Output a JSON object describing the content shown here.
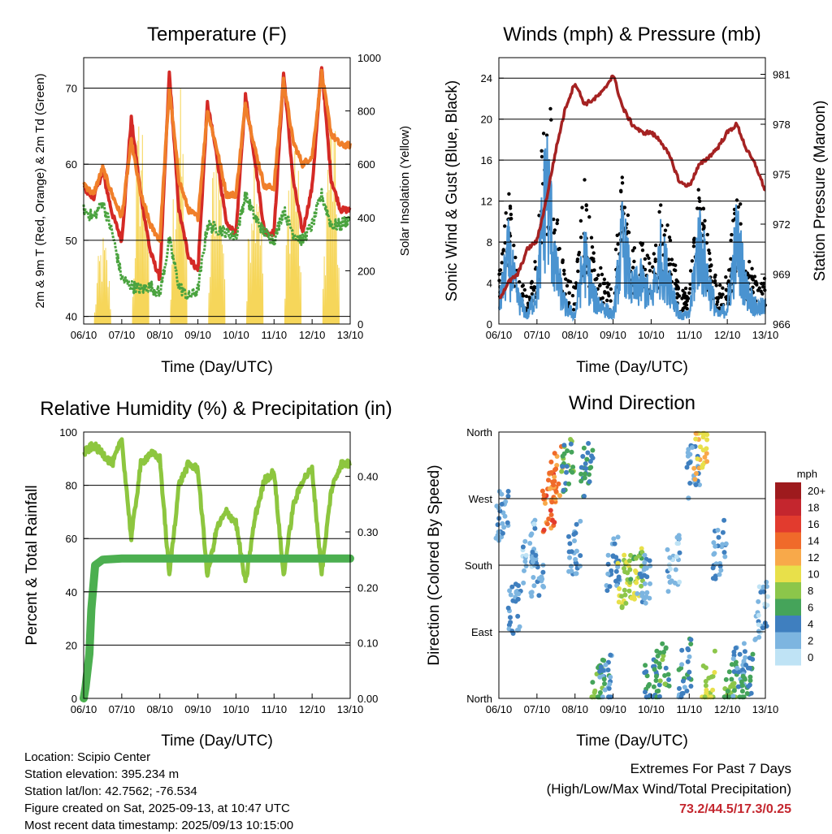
{
  "x_ticks": [
    "06/10",
    "07/10",
    "08/10",
    "09/10",
    "10/10",
    "11/10",
    "12/10",
    "13/10"
  ],
  "x_label": "Time (Day/UTC)",
  "charts": {
    "temperature": {
      "title": "Temperature (F)",
      "ylabel_left": "2m & 9m T (Red, Orange) & 2m Td (Green)",
      "ylabel_right": "Solar Insolation (Yellow)",
      "left_ticks": [
        "40",
        "50",
        "60",
        "70"
      ],
      "right_ticks": [
        "0",
        "200",
        "400",
        "600",
        "800",
        "1000"
      ]
    },
    "winds": {
      "title": "Winds (mph) & Pressure (mb)",
      "ylabel_left": "Sonic Wind & Gust (Blue, Black)",
      "ylabel_right": "Station Pressure (Maroon)",
      "left_ticks": [
        "0",
        "4",
        "8",
        "12",
        "16",
        "20",
        "24"
      ],
      "right_ticks": [
        "966",
        "969",
        "972",
        "975",
        "978",
        "981"
      ]
    },
    "humidity": {
      "title": "Relative Humidity (%) & Precipitation (in)",
      "ylabel_left": "Percent & Total Rainfall",
      "left_ticks": [
        "0",
        "20",
        "40",
        "60",
        "80",
        "100"
      ],
      "right_ticks": [
        "0.00",
        "0.10",
        "0.20",
        "0.30",
        "0.40"
      ]
    },
    "direction": {
      "title": "Wind Direction",
      "ylabel_left": "Direction (Colored By Speed)",
      "left_ticks": [
        "North",
        "East",
        "South",
        "West",
        "North"
      ],
      "legend_title": "mph",
      "legend_labels": [
        "20+",
        "18",
        "16",
        "14",
        "12",
        "10",
        "8",
        "6",
        "4",
        "2",
        "0"
      ],
      "legend_colors": [
        "#9e1a1d",
        "#c4262e",
        "#e23b2e",
        "#f06a2a",
        "#f8a94a",
        "#e8e04a",
        "#8cc64a",
        "#45a45a",
        "#3f7fbf",
        "#7db5e0",
        "#bfe3f5"
      ]
    }
  },
  "chart_data": [
    {
      "type": "line",
      "title": "Temperature (F)",
      "xlabel": "Time (Day/UTC)",
      "ylabel": "2m & 9m T (Red, Orange) & 2m Td (Green)",
      "ylim": [
        39,
        74
      ],
      "y2label": "Solar Insolation (Yellow)",
      "y2lim": [
        0,
        1000
      ],
      "x": [
        6.0,
        6.25,
        6.5,
        6.75,
        7.0,
        7.25,
        7.5,
        7.75,
        8.0,
        8.25,
        8.5,
        8.75,
        9.0,
        9.25,
        9.5,
        9.75,
        10.0,
        10.25,
        10.5,
        10.75,
        11.0,
        11.25,
        11.5,
        11.75,
        12.0,
        12.25,
        12.5,
        12.75,
        13.0
      ],
      "series": [
        {
          "name": "2m T",
          "color": "#d42a26",
          "values": [
            57,
            55.5,
            59,
            53.5,
            50,
            66,
            56,
            48.5,
            45,
            72,
            54,
            48,
            46,
            68,
            61,
            52,
            51,
            69,
            60.5,
            51,
            51,
            72,
            58,
            51,
            57,
            73,
            58,
            54,
            54
          ]
        },
        {
          "name": "9m T",
          "color": "#f07f2a",
          "values": [
            57.5,
            56,
            59.5,
            56,
            53,
            63,
            56,
            52,
            50,
            70,
            58,
            54,
            53,
            67,
            62,
            56,
            56,
            68,
            62,
            57,
            57,
            71,
            63,
            60,
            61,
            72,
            64,
            62.5,
            62.5
          ]
        },
        {
          "name": "2m Td",
          "color": "#4aa33f",
          "values": [
            54,
            53,
            55,
            51,
            45,
            44,
            43.5,
            44,
            43,
            50,
            44,
            42.5,
            43.5,
            52,
            51.5,
            51,
            50.5,
            56,
            53,
            51,
            50,
            54,
            51,
            50,
            52,
            56,
            52,
            52,
            53
          ]
        }
      ],
      "y2_series": [
        {
          "name": "Solar Insolation",
          "color": "#f6d65a",
          "peaks_x": [
            6.5,
            7.5,
            8.5,
            9.5,
            10.5,
            11.5,
            12.5
          ],
          "peaks_y": [
            350,
            880,
            920,
            830,
            860,
            850,
            880
          ]
        }
      ]
    },
    {
      "type": "scatter",
      "title": "Winds (mph) & Pressure (mb)",
      "xlabel": "Time (Day/UTC)",
      "ylabel": "Sonic Wind & Gust (Blue, Black)",
      "ylim": [
        0,
        26
      ],
      "y2label": "Station Pressure (Maroon)",
      "y2lim": [
        966,
        982
      ],
      "x": [
        6.0,
        6.25,
        6.5,
        6.75,
        7.0,
        7.25,
        7.5,
        7.75,
        8.0,
        8.25,
        8.5,
        8.75,
        9.0,
        9.25,
        9.5,
        9.75,
        10.0,
        10.25,
        10.5,
        10.75,
        11.0,
        11.25,
        11.5,
        11.75,
        12.0,
        12.25,
        12.5,
        12.75,
        13.0
      ],
      "series": [
        {
          "name": "Gust",
          "color": "#000000",
          "values": [
            4,
            11,
            5,
            2,
            6,
            23,
            10,
            4,
            3,
            12,
            6,
            4,
            3,
            14,
            6,
            7,
            5,
            10,
            8,
            3,
            3,
            12,
            7,
            3,
            4,
            12,
            6,
            4,
            4
          ]
        },
        {
          "name": "Sonic Wind",
          "color": "#4a93d0",
          "values": [
            2,
            8,
            3,
            1,
            4,
            17,
            6,
            2,
            1,
            8,
            3,
            2,
            1,
            10,
            4,
            5,
            3,
            8,
            5,
            1,
            1,
            10,
            5,
            1,
            2,
            10,
            4,
            2,
            2
          ]
        },
        {
          "name": "Station Pressure",
          "color": "#a52222",
          "values": [
            967.5,
            968.5,
            969,
            970.5,
            971,
            973.5,
            976.5,
            979,
            980.5,
            979.2,
            979.5,
            980,
            981,
            979,
            978,
            977.5,
            977.5,
            977,
            976,
            974.5,
            974.3,
            975.5,
            976,
            976.6,
            977.5,
            978,
            976.5,
            975.5,
            974
          ]
        }
      ]
    },
    {
      "type": "line",
      "title": "Relative Humidity (%) & Precipitation (in)",
      "xlabel": "Time (Day/UTC)",
      "ylabel": "Percent & Total Rainfall",
      "ylim": [
        0,
        100
      ],
      "y2lim": [
        0,
        0.48
      ],
      "x": [
        6.0,
        6.25,
        6.5,
        6.75,
        7.0,
        7.25,
        7.5,
        7.75,
        8.0,
        8.25,
        8.5,
        8.75,
        9.0,
        9.25,
        9.5,
        9.75,
        10.0,
        10.25,
        10.5,
        10.75,
        11.0,
        11.25,
        11.5,
        11.75,
        12.0,
        12.25,
        12.5,
        12.75,
        13.0
      ],
      "series": [
        {
          "name": "Relative Humidity",
          "color": "#8dc63f",
          "values": [
            92,
            95,
            92,
            88,
            97,
            60,
            88,
            92,
            90,
            46,
            80,
            88,
            86,
            46,
            64,
            70,
            66,
            43,
            68,
            82,
            85,
            46,
            72,
            82,
            86,
            47,
            78,
            88,
            88
          ]
        },
        {
          "name": "Total Rainfall",
          "color": "#4caf50",
          "axis": "y2",
          "x": [
            6.0,
            6.05,
            6.15,
            6.2,
            6.3,
            6.4,
            6.5,
            7.0,
            8.0,
            9.0,
            10.0,
            11.0,
            12.0,
            13.0
          ],
          "values": [
            0.0,
            0.02,
            0.08,
            0.16,
            0.24,
            0.245,
            0.25,
            0.252,
            0.252,
            0.252,
            0.252,
            0.252,
            0.252,
            0.252
          ]
        }
      ]
    },
    {
      "type": "scatter",
      "title": "Wind Direction",
      "xlabel": "Time (Day/UTC)",
      "ylabel": "Direction (Colored By Speed)",
      "y_categories": [
        "North",
        "East",
        "South",
        "West",
        "North"
      ],
      "ylim": [
        0,
        360
      ],
      "color_scale": {
        "label": "mph",
        "levels": [
          0,
          2,
          4,
          6,
          8,
          10,
          12,
          14,
          16,
          18,
          20
        ]
      },
      "x": [
        6.1,
        6.4,
        6.8,
        7.0,
        7.3,
        7.5,
        7.8,
        8.0,
        8.3,
        8.6,
        8.8,
        9.0,
        9.3,
        9.6,
        9.8,
        10.0,
        10.3,
        10.6,
        10.9,
        11.1,
        11.3,
        11.5,
        11.8,
        12.1,
        12.3,
        12.5,
        12.9
      ],
      "values": [
        250,
        120,
        200,
        170,
        260,
        300,
        320,
        200,
        310,
        10,
        20,
        180,
        160,
        165,
        160,
        20,
        40,
        180,
        40,
        310,
        340,
        20,
        200,
        10,
        40,
        20,
        120
      ],
      "speed": [
        3,
        3,
        2,
        3,
        14,
        13,
        6,
        3,
        5,
        7,
        4,
        3,
        9,
        8,
        3,
        5,
        6,
        2,
        4,
        3,
        11,
        9,
        3,
        7,
        3,
        5,
        2
      ]
    }
  ],
  "info": {
    "location": "Location: Scipio Center",
    "elevation": "Station elevation: 395.234 m",
    "latlon": "Station lat/lon: 42.7562; -76.534",
    "created": "Figure created on Sat, 2025-09-13, at 10:47 UTC",
    "recent": "Most recent data timestamp: 2025/09/13 10:15:00"
  },
  "extremes": {
    "line1": "Extremes For Past 7 Days",
    "line2": "(High/Low/Max Wind/Total Precipitation)",
    "values": "73.2/44.5/17.3/0.25"
  }
}
